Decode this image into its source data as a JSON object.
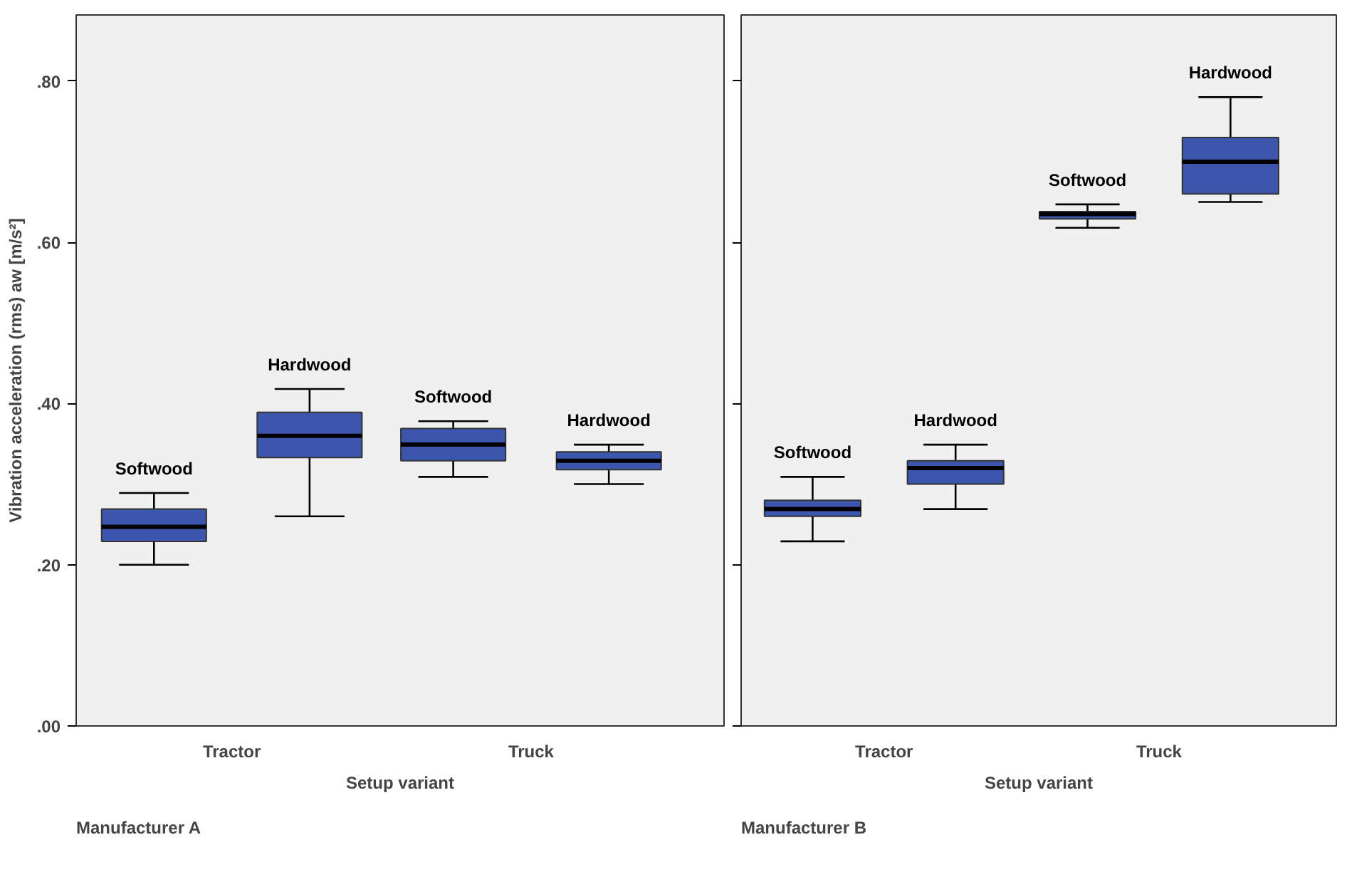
{
  "chart_data": [
    {
      "type": "box",
      "categories": [
        "Tractor",
        "Truck"
      ],
      "xlabel": "Setup variant",
      "ylabel": "Vibration acceleration (rms) aw [m/s²]",
      "ylim": [
        0,
        0.882
      ],
      "yticks": [
        {
          "value": 0,
          "label": ".00"
        },
        {
          "value": 0.2,
          "label": ".20"
        },
        {
          "value": 0.4,
          "label": ".40"
        },
        {
          "value": 0.6,
          "label": ".60"
        },
        {
          "value": 0.8,
          "label": ".80"
        }
      ],
      "grid": false,
      "annotations": [
        "Manufacturer A"
      ],
      "series": [
        {
          "name": "Softwood",
          "color": "#3c56ae",
          "boxes": [
            {
              "low": 0.2,
              "q1": 0.229,
              "median": 0.247,
              "q3": 0.269,
              "high": 0.289
            },
            {
              "low": 0.309,
              "q1": 0.329,
              "median": 0.349,
              "q3": 0.369,
              "high": 0.378
            }
          ]
        },
        {
          "name": "Hardwood",
          "color": "#3c56ae",
          "boxes": [
            {
              "low": 0.26,
              "q1": 0.333,
              "median": 0.36,
              "q3": 0.389,
              "high": 0.418
            },
            {
              "low": 0.3,
              "q1": 0.318,
              "median": 0.329,
              "q3": 0.34,
              "high": 0.349
            }
          ]
        }
      ]
    },
    {
      "type": "box",
      "categories": [
        "Tractor",
        "Truck"
      ],
      "xlabel": "Setup variant",
      "ylim": [
        0,
        0.882
      ],
      "yticks": [
        {
          "value": 0,
          "label": null
        },
        {
          "value": 0.2,
          "label": null
        },
        {
          "value": 0.4,
          "label": null
        },
        {
          "value": 0.6,
          "label": null
        },
        {
          "value": 0.8,
          "label": null
        }
      ],
      "tick_labels": "x",
      "grid": false,
      "annotations": [
        "Manufacturer B"
      ],
      "series": [
        {
          "name": "Softwood",
          "color": "#3c56ae",
          "boxes": [
            {
              "low": 0.229,
              "q1": 0.26,
              "median": 0.269,
              "q3": 0.28,
              "high": 0.309
            },
            {
              "low": 0.618,
              "q1": 0.629,
              "median": 0.635,
              "q3": 0.638,
              "high": 0.647
            }
          ]
        },
        {
          "name": "Hardwood",
          "color": "#3c56ae",
          "boxes": [
            {
              "low": 0.269,
              "q1": 0.3,
              "median": 0.32,
              "q3": 0.329,
              "high": 0.349
            },
            {
              "low": 0.65,
              "q1": 0.66,
              "median": 0.7,
              "q3": 0.73,
              "high": 0.78
            }
          ]
        }
      ]
    }
  ]
}
